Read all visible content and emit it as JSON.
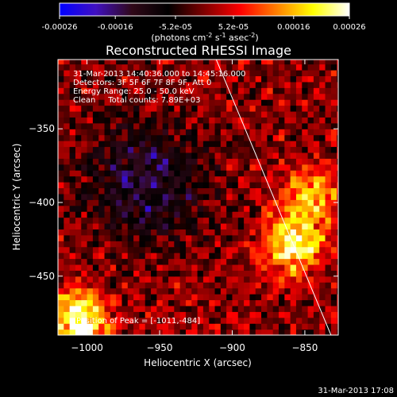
{
  "colorbar": {
    "ticks": [
      "-0.00026",
      "-0.00016",
      "-5.2e-05",
      "5.2e-05",
      "0.00016",
      "0.00026"
    ],
    "tick_values": [
      -0.00026,
      -0.00016,
      -5.2e-05,
      5.2e-05,
      0.00016,
      0.00026
    ],
    "range": [
      -0.00026,
      0.00026
    ],
    "units_text": "(photons cm",
    "units_exp1": "-2",
    "units_s": " s",
    "units_exp2": "-1",
    "units_asec": " asec",
    "units_exp3": "-2",
    "units_close": ")",
    "colormap": [
      "#0000ff",
      "#4010c0",
      "#300818",
      "#000000",
      "#800000",
      "#ff0000",
      "#ff8000",
      "#ffff00",
      "#ffffff"
    ]
  },
  "chart_data": {
    "type": "heatmap",
    "title": "Reconstructed RHESSI Image",
    "xlabel": "Heliocentric X (arcsec)",
    "ylabel": "Heliocentric Y (arcsec)",
    "xlim": [
      -1020,
      -827
    ],
    "ylim": [
      -490,
      -303
    ],
    "xticks": [
      -1000,
      -950,
      -900,
      -850
    ],
    "xtick_labels": [
      "−1000",
      "−950",
      "−900",
      "−850"
    ],
    "yticks": [
      -350,
      -400,
      -450
    ],
    "ytick_labels": [
      "−350",
      "−400",
      "−450"
    ],
    "info_lines": [
      "31-Mar-2013 14:40:36.000 to 14:45:16.000",
      "Detectors: 3F 5F 6F 7F 8F 9F, Att 0",
      "Energy Range: 25.0 - 50.0 keV",
      "Clean     Total counts: 7.89E+03"
    ],
    "peak_label": "Position of Peak = [-1011,-484]",
    "peak": [
      -1011,
      -484
    ],
    "limb_line": [
      [
        -911,
        -303
      ],
      [
        -832,
        -490
      ]
    ],
    "sources": [
      {
        "x": -1005,
        "y": -480,
        "peak": 0.00026
      },
      {
        "x": -858,
        "y": -428,
        "peak": 0.00022
      },
      {
        "x": -845,
        "y": -395,
        "peak": 0.00016
      }
    ],
    "negative_region": {
      "x": -960,
      "y": -385,
      "min": -0.00016
    }
  },
  "footer": {
    "timestamp": "31-Mar-2013 17:08"
  }
}
